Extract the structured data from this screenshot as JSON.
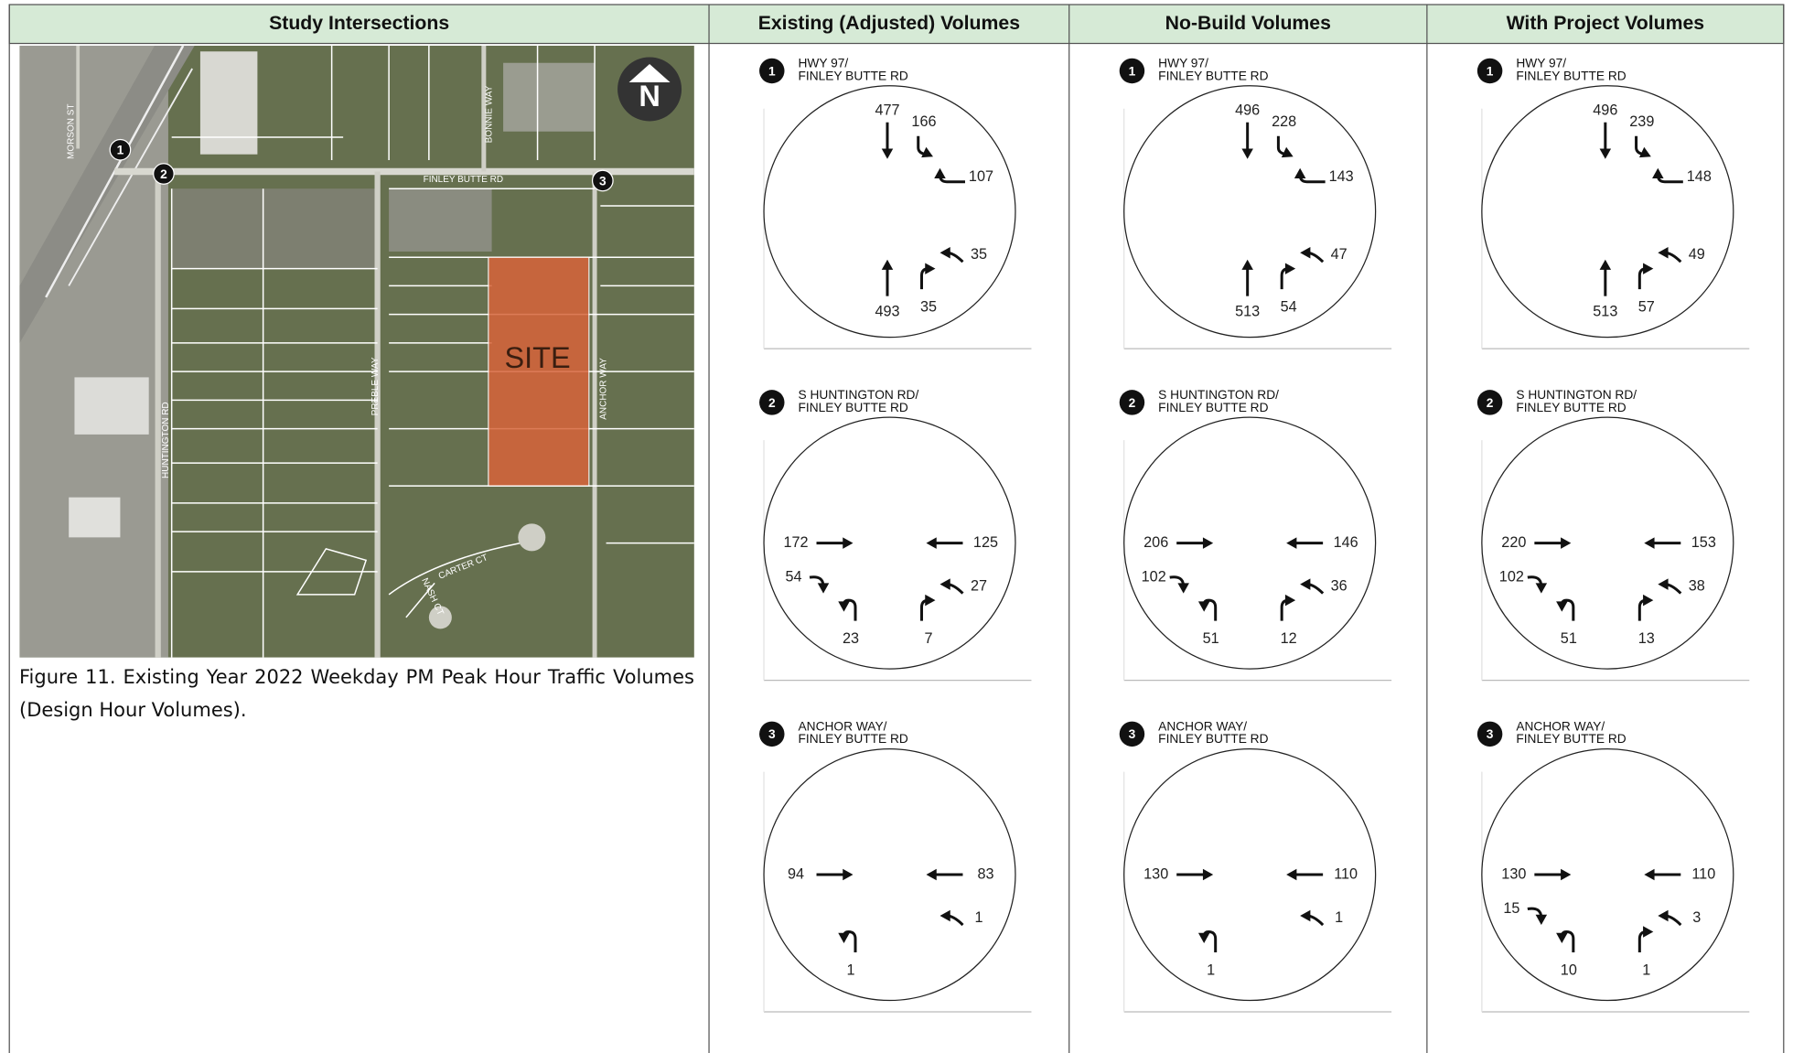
{
  "header": {
    "columns": [
      "Study Intersections",
      "Existing (Adjusted) Volumes",
      "No-Build Volumes",
      "With Project Volumes"
    ]
  },
  "map": {
    "labels": [
      "MORSON ST",
      "FINLEY BUTTE RD",
      "BONNIE WAY",
      "PREBLE WAY",
      "ANCHOR WAY",
      "HUNTINGTON RD",
      "CARTER CT",
      "NASH CT",
      "SITE",
      "N"
    ],
    "markers": [
      "1",
      "2",
      "3"
    ]
  },
  "caption": "Figure 11. Existing Year 2022 Weekday PM Peak Hour Traffic Volumes (Design Hour Volumes).",
  "scenarios": [
    {
      "intersections": [
        {
          "number": "1",
          "name": [
            "HWY 97/",
            "FINLEY BUTTE RD"
          ],
          "volumes": [
            477,
            166,
            107,
            35,
            493,
            35
          ]
        },
        {
          "number": "2",
          "name": [
            "S HUNTINGTON RD/",
            "FINLEY BUTTE RD"
          ],
          "volumes": [
            172,
            125,
            54,
            27,
            23,
            7
          ]
        },
        {
          "number": "3",
          "name": [
            "ANCHOR WAY/",
            "FINLEY BUTTE RD"
          ],
          "volumes": [
            94,
            83,
            1,
            1
          ]
        }
      ]
    },
    {
      "intersections": [
        {
          "number": "1",
          "name": [
            "HWY 97/",
            "FINLEY BUTTE RD"
          ],
          "volumes": [
            496,
            228,
            143,
            47,
            513,
            54
          ]
        },
        {
          "number": "2",
          "name": [
            "S HUNTINGTON RD/",
            "FINLEY BUTTE RD"
          ],
          "volumes": [
            206,
            146,
            102,
            36,
            51,
            12
          ]
        },
        {
          "number": "3",
          "name": [
            "ANCHOR WAY/",
            "FINLEY BUTTE RD"
          ],
          "volumes": [
            130,
            110,
            1,
            1
          ]
        }
      ]
    },
    {
      "intersections": [
        {
          "number": "1",
          "name": [
            "HWY 97/",
            "FINLEY BUTTE RD"
          ],
          "volumes": [
            496,
            239,
            148,
            49,
            513,
            57
          ]
        },
        {
          "number": "2",
          "name": [
            "S HUNTINGTON RD/",
            "FINLEY BUTTE RD"
          ],
          "volumes": [
            220,
            153,
            102,
            38,
            51,
            13
          ]
        },
        {
          "number": "3",
          "name": [
            "ANCHOR WAY/",
            "FINLEY BUTTE RD"
          ],
          "volumes": [
            130,
            110,
            15,
            3,
            10,
            1
          ]
        }
      ]
    }
  ]
}
